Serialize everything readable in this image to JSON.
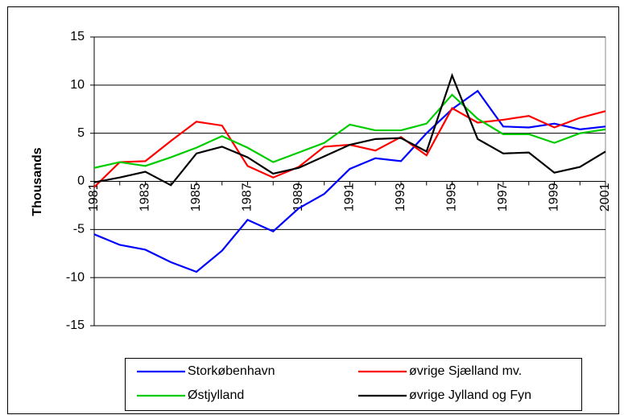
{
  "chart_data": {
    "type": "line",
    "y_label": "Thousands",
    "x": [
      1981,
      1982,
      1983,
      1984,
      1985,
      1986,
      1987,
      1988,
      1989,
      1990,
      1991,
      1992,
      1993,
      1994,
      1995,
      1996,
      1997,
      1998,
      1999,
      2000,
      2001
    ],
    "xlim": [
      1981,
      2001
    ],
    "xticks": [
      1981,
      1983,
      1985,
      1987,
      1989,
      1991,
      1993,
      1995,
      1997,
      1999,
      2001
    ],
    "ylim": [
      -15,
      15
    ],
    "yticks": [
      -15,
      -10,
      -5,
      0,
      5,
      10,
      15
    ],
    "grid": true,
    "legend": "bottom",
    "series": [
      {
        "name": "Storkøbenhavn",
        "color": "#0000ff",
        "values": [
          -5.5,
          -6.6,
          -7.1,
          -8.4,
          -9.4,
          -7.2,
          -4.0,
          -5.2,
          -2.8,
          -1.3,
          1.3,
          2.4,
          2.1,
          5.0,
          7.5,
          9.4,
          5.7,
          5.6,
          6.0,
          5.4,
          5.7
        ]
      },
      {
        "name": "øvrige Sjælland mv.",
        "color": "#ff0000",
        "values": [
          -0.6,
          2.0,
          2.1,
          4.2,
          6.2,
          5.8,
          1.6,
          0.4,
          1.5,
          3.6,
          3.8,
          3.2,
          4.6,
          2.7,
          7.6,
          6.1,
          6.4,
          6.8,
          5.6,
          6.6,
          7.3
        ]
      },
      {
        "name": "Østjylland",
        "color": "#00cc00",
        "values": [
          1.4,
          2.0,
          1.6,
          2.5,
          3.5,
          4.7,
          3.5,
          2.0,
          3.0,
          4.0,
          5.9,
          5.3,
          5.3,
          6.0,
          9.0,
          6.5,
          4.9,
          4.9,
          4.0,
          5.0,
          5.4
        ]
      },
      {
        "name": "øvrige Jylland og Fyn",
        "color": "#000000",
        "values": [
          -0.1,
          0.4,
          1.0,
          -0.4,
          2.9,
          3.6,
          2.5,
          0.8,
          1.4,
          2.6,
          3.8,
          4.4,
          4.5,
          3.1,
          11.0,
          4.4,
          2.9,
          3.0,
          0.9,
          1.5,
          3.1
        ]
      }
    ]
  }
}
